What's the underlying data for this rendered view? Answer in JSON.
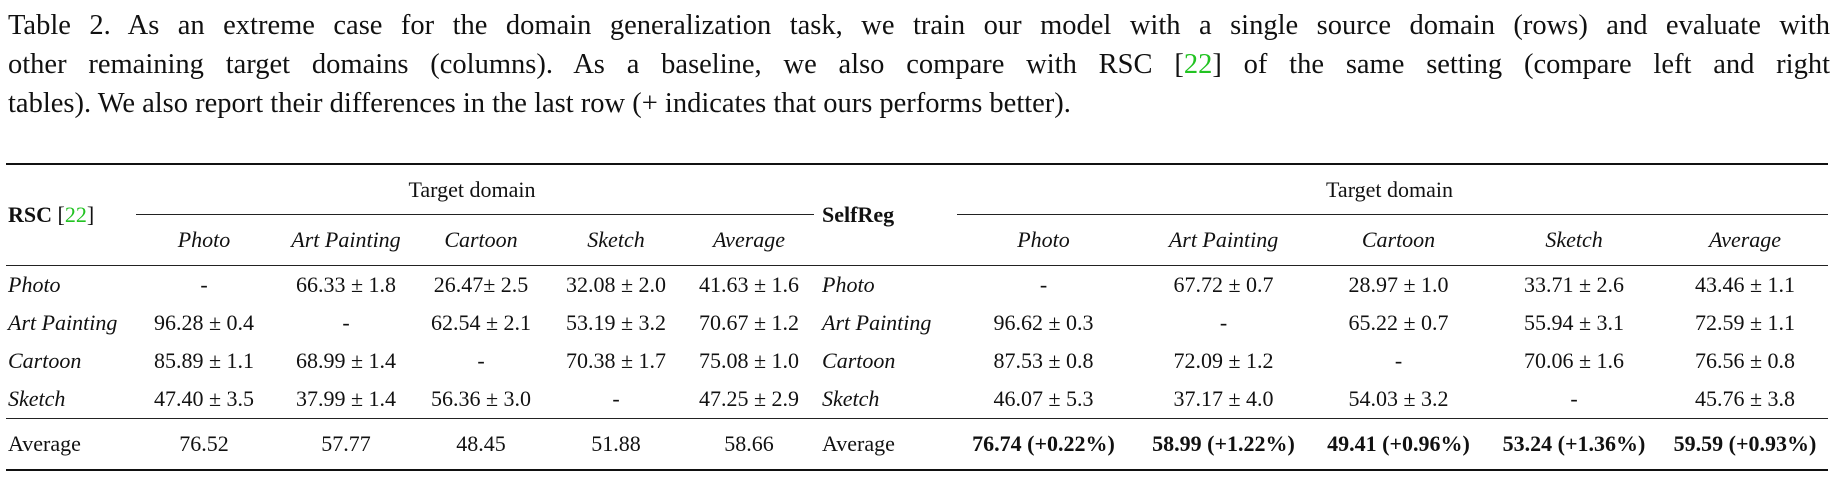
{
  "caption": {
    "line1": "Table 2. As an extreme case for the domain generalization task, we train our model with a single source domain (rows) and evaluate with",
    "line2_a": "other remaining target domains (columns).  As a baseline, we also compare with RSC [",
    "cite": "22",
    "line2_b": "] of the same setting (compare left and right",
    "line3": "tables). We also report their differences in the last row (+ indicates that ours performs better)."
  },
  "left_table": {
    "method": "RSC",
    "cite_open": "[",
    "cite": "22",
    "cite_close": "]",
    "group_header": "Target domain",
    "columns": [
      "Photo",
      "Art Painting",
      "Cartoon",
      "Sketch",
      "Average"
    ],
    "rows": [
      {
        "source": "Photo",
        "cells": [
          "-",
          "66.33 ± 1.8",
          "26.47± 2.5",
          "32.08 ± 2.0",
          "41.63 ± 1.6"
        ]
      },
      {
        "source": "Art Painting",
        "cells": [
          "96.28 ± 0.4",
          "-",
          "62.54 ± 2.1",
          "53.19 ± 3.2",
          "70.67 ± 1.2"
        ]
      },
      {
        "source": "Cartoon",
        "cells": [
          "85.89 ± 1.1",
          "68.99 ± 1.4",
          "-",
          "70.38 ± 1.7",
          "75.08 ± 1.0"
        ]
      },
      {
        "source": "Sketch",
        "cells": [
          "47.40 ± 3.5",
          "37.99 ± 1.4",
          "56.36 ± 3.0",
          "-",
          "47.25 ± 2.9"
        ]
      }
    ],
    "average": {
      "label": "Average",
      "cells": [
        "76.52",
        "57.77",
        "48.45",
        "51.88",
        "58.66"
      ]
    }
  },
  "right_table": {
    "method": "SelfReg",
    "group_header": "Target domain",
    "columns": [
      "Photo",
      "Art Painting",
      "Cartoon",
      "Sketch",
      "Average"
    ],
    "rows": [
      {
        "source": "Photo",
        "cells": [
          "-",
          "67.72 ± 0.7",
          "28.97 ± 1.0",
          "33.71 ± 2.6",
          "43.46 ± 1.1"
        ]
      },
      {
        "source": "Art Painting",
        "cells": [
          "96.62 ± 0.3",
          "-",
          "65.22 ± 0.7",
          "55.94 ± 3.1",
          "72.59 ± 1.1"
        ]
      },
      {
        "source": "Cartoon",
        "cells": [
          "87.53 ± 0.8",
          "72.09 ± 1.2",
          "-",
          "70.06 ± 1.6",
          "76.56 ± 0.8"
        ]
      },
      {
        "source": "Sketch",
        "cells": [
          "46.07 ± 5.3",
          "37.17 ± 4.0",
          "54.03 ± 3.2",
          "-",
          "45.76 ± 3.8"
        ]
      }
    ],
    "average": {
      "label": "Average",
      "cells": [
        "76.74 (+0.22%)",
        "58.99 (+1.22%)",
        "49.41 (+0.96%)",
        "53.24 (+1.36%)",
        "59.59 (+0.93%)"
      ]
    }
  },
  "colors": {
    "citation": "#22c322",
    "text": "#111111"
  }
}
